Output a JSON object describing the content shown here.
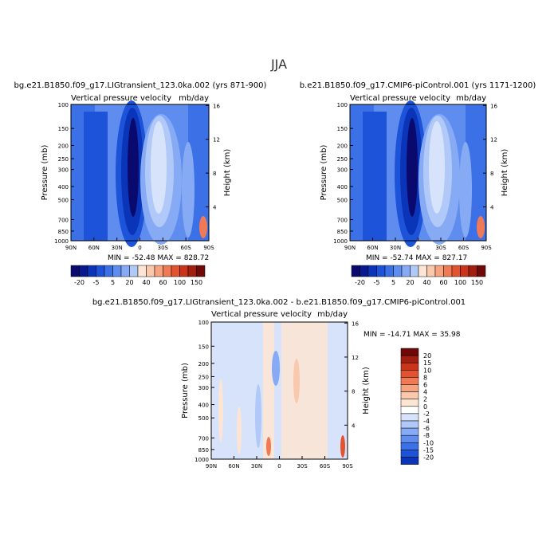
{
  "figure_title": "JJA",
  "colors": {
    "diverging_scale": [
      "#0a0a6e",
      "#08198f",
      "#0a35b8",
      "#1d53d9",
      "#3b70e6",
      "#5e8cef",
      "#86abf4",
      "#b0c9f8",
      "#d6e3fb",
      "#fde5d4",
      "#fac8ac",
      "#f6a380",
      "#ef7a55",
      "#e4532f",
      "#c9341a",
      "#a01f0e",
      "#700808"
    ]
  },
  "chart_data": [
    {
      "type": "heatmap",
      "panel": "top-left",
      "title": "bg.e21.B1850.f09_g17.LIGtransient_123.0ka.002 (yrs 871-900)",
      "left_string": "Vertical pressure velocity",
      "right_string": "mb/day",
      "xlabel": "",
      "ylabel": "Pressure (mb)",
      "ylabel_right": "Height (km)",
      "x_ticks": [
        "90N",
        "60N",
        "30N",
        "0",
        "30S",
        "60S",
        "90S"
      ],
      "y_ticks": [
        "100",
        "150",
        "200",
        "250",
        "300",
        "400",
        "500",
        "700",
        "850",
        "1000"
      ],
      "y_ticks_right": [
        "16",
        "12",
        "8",
        "4"
      ],
      "stats": {
        "min_label": "MIN =",
        "min": "-52.48",
        "max_label": "MAX =",
        "max": "828.72"
      },
      "colorbar": {
        "orientation": "horizontal",
        "tick_labels": [
          "-20",
          "-5",
          "5",
          "20",
          "40",
          "60",
          "100",
          "150"
        ],
        "levels": [
          -40,
          -20,
          -10,
          -5,
          0,
          5,
          10,
          20,
          30,
          40,
          50,
          60,
          80,
          100,
          120,
          150
        ]
      }
    },
    {
      "type": "heatmap",
      "panel": "top-right",
      "title": "b.e21.B1850.f09_g17.CMIP6-piControl.001 (yrs 1171-1200)",
      "left_string": "Vertical pressure velocity",
      "right_string": "mb/day",
      "xlabel": "",
      "ylabel": "Pressure (mb)",
      "ylabel_right": "Height (km)",
      "x_ticks": [
        "90N",
        "60N",
        "30N",
        "0",
        "30S",
        "60S",
        "90S"
      ],
      "y_ticks": [
        "100",
        "150",
        "200",
        "250",
        "300",
        "400",
        "500",
        "700",
        "850",
        "1000"
      ],
      "y_ticks_right": [
        "16",
        "12",
        "8",
        "4"
      ],
      "stats": {
        "min_label": "MIN =",
        "min": "-52.74",
        "max_label": "MAX =",
        "max": "827.17"
      },
      "colorbar": {
        "orientation": "horizontal",
        "tick_labels": [
          "-20",
          "-5",
          "5",
          "20",
          "40",
          "60",
          "100",
          "150"
        ],
        "levels": [
          -40,
          -20,
          -10,
          -5,
          0,
          5,
          10,
          20,
          30,
          40,
          50,
          60,
          80,
          100,
          120,
          150
        ]
      }
    },
    {
      "type": "heatmap",
      "panel": "bottom-center",
      "title": "bg.e21.B1850.f09_g17.LIGtransient_123.0ka.002 - b.e21.B1850.f09_g17.CMIP6-piControl.001",
      "left_string": "Vertical pressure velocity",
      "right_string": "mb/day",
      "xlabel": "",
      "ylabel": "Pressure (mb)",
      "ylabel_right": "Height (km)",
      "x_ticks": [
        "90N",
        "60N",
        "30N",
        "0",
        "30S",
        "60S",
        "90S"
      ],
      "y_ticks": [
        "100",
        "150",
        "200",
        "250",
        "300",
        "400",
        "500",
        "700",
        "850",
        "1000"
      ],
      "y_ticks_right": [
        "16",
        "12",
        "8",
        "4"
      ],
      "stats": {
        "min_label": "MIN =",
        "min": "-14.71",
        "max_label": "MAX =",
        "max": "35.98"
      },
      "colorbar": {
        "orientation": "vertical",
        "tick_labels": [
          "20",
          "15",
          "10",
          "8",
          "6",
          "4",
          "2",
          "0",
          "-2",
          "-4",
          "-6",
          "-8",
          "-10",
          "-15",
          "-20"
        ]
      }
    }
  ]
}
